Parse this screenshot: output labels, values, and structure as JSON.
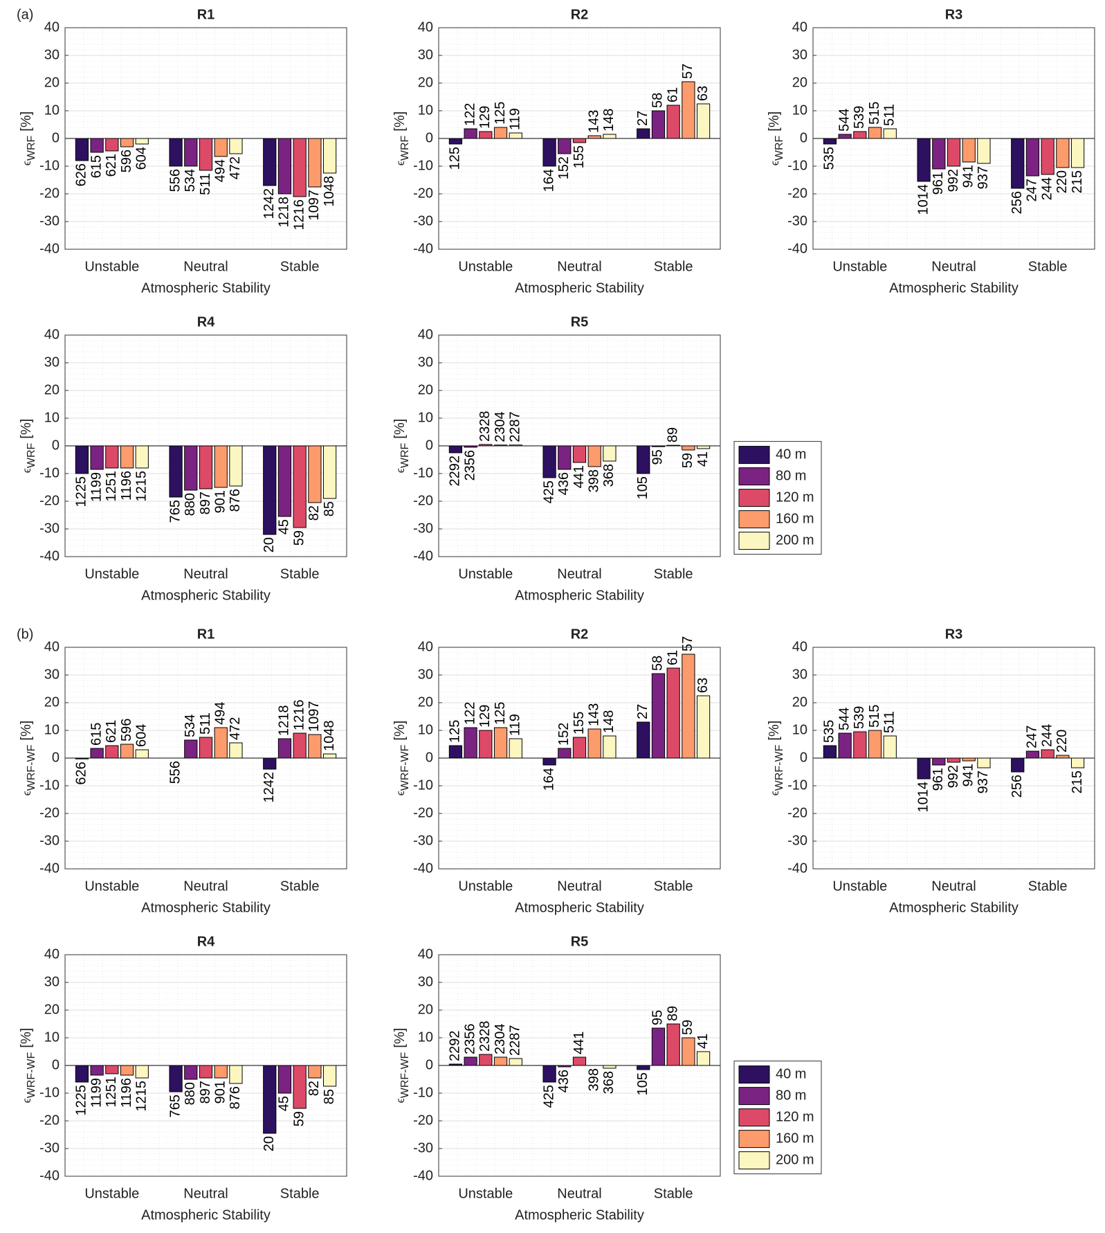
{
  "chart_data": [
    {
      "type": "bar",
      "panel_label": "(a)",
      "title": "R1",
      "categories": [
        "Unstable",
        "Neutral",
        "Stable"
      ],
      "xlabel": "Atmospheric Stability",
      "ylabel": {
        "symbol": "ϵ",
        "subscript": "WRF",
        "unit": "[%]"
      },
      "ylim": [
        -40,
        40
      ],
      "yticks": [
        -40,
        -30,
        -20,
        -10,
        0,
        10,
        20,
        30,
        40
      ],
      "grid": true,
      "minor_grid": true,
      "series": [
        {
          "name": "40 m",
          "color": "#2d1160",
          "values": [
            -8,
            -10,
            -17
          ],
          "sample_counts": [
            626,
            556,
            1242
          ]
        },
        {
          "name": "80 m",
          "color": "#7b2382",
          "values": [
            -5,
            -10,
            -20
          ],
          "sample_counts": [
            615,
            534,
            1218
          ]
        },
        {
          "name": "120 m",
          "color": "#dd4a68",
          "values": [
            -4.5,
            -11.5,
            -21
          ],
          "sample_counts": [
            621,
            511,
            1216
          ]
        },
        {
          "name": "160 m",
          "color": "#fc9b6b",
          "values": [
            -3,
            -6.5,
            -17.5
          ],
          "sample_counts": [
            596,
            494,
            1097
          ]
        },
        {
          "name": "200 m",
          "color": "#fcf6c0",
          "values": [
            -2,
            -5.5,
            -12.5
          ],
          "sample_counts": [
            604,
            472,
            1048
          ]
        }
      ]
    },
    {
      "type": "bar",
      "title": "R2",
      "categories": [
        "Unstable",
        "Neutral",
        "Stable"
      ],
      "xlabel": "Atmospheric Stability",
      "ylabel": {
        "symbol": "ϵ",
        "subscript": "WRF",
        "unit": "[%]"
      },
      "ylim": [
        -40,
        40
      ],
      "yticks": [
        -40,
        -30,
        -20,
        -10,
        0,
        10,
        20,
        30,
        40
      ],
      "grid": true,
      "minor_grid": true,
      "series": [
        {
          "name": "40 m",
          "color": "#2d1160",
          "values": [
            -2,
            -10,
            3.5
          ],
          "sample_counts": [
            125,
            164,
            27
          ]
        },
        {
          "name": "80 m",
          "color": "#7b2382",
          "values": [
            3.5,
            -5.5,
            10
          ],
          "sample_counts": [
            122,
            152,
            58
          ]
        },
        {
          "name": "120 m",
          "color": "#dd4a68",
          "values": [
            2.5,
            -1.5,
            12
          ],
          "sample_counts": [
            129,
            155,
            61
          ]
        },
        {
          "name": "160 m",
          "color": "#fc9b6b",
          "values": [
            4,
            1,
            20.5
          ],
          "sample_counts": [
            125,
            143,
            57
          ]
        },
        {
          "name": "200 m",
          "color": "#fcf6c0",
          "values": [
            2,
            1.5,
            12.5
          ],
          "sample_counts": [
            119,
            148,
            63
          ]
        }
      ]
    },
    {
      "type": "bar",
      "title": "R3",
      "categories": [
        "Unstable",
        "Neutral",
        "Stable"
      ],
      "xlabel": "Atmospheric Stability",
      "ylabel": {
        "symbol": "ϵ",
        "subscript": "WRF",
        "unit": "[%]"
      },
      "ylim": [
        -40,
        40
      ],
      "yticks": [
        -40,
        -30,
        -20,
        -10,
        0,
        10,
        20,
        30,
        40
      ],
      "grid": true,
      "minor_grid": true,
      "series": [
        {
          "name": "40 m",
          "color": "#2d1160",
          "values": [
            -2,
            -15.5,
            -18
          ],
          "sample_counts": [
            535,
            1014,
            256
          ]
        },
        {
          "name": "80 m",
          "color": "#7b2382",
          "values": [
            1.5,
            -11,
            -13.5
          ],
          "sample_counts": [
            544,
            961,
            247
          ]
        },
        {
          "name": "120 m",
          "color": "#dd4a68",
          "values": [
            2.5,
            -10,
            -13
          ],
          "sample_counts": [
            539,
            992,
            244
          ]
        },
        {
          "name": "160 m",
          "color": "#fc9b6b",
          "values": [
            4,
            -8.5,
            -10.5
          ],
          "sample_counts": [
            515,
            941,
            220
          ]
        },
        {
          "name": "200 m",
          "color": "#fcf6c0",
          "values": [
            3.5,
            -9,
            -10.5
          ],
          "sample_counts": [
            511,
            937,
            215
          ]
        }
      ]
    },
    {
      "type": "bar",
      "title": "R4",
      "categories": [
        "Unstable",
        "Neutral",
        "Stable"
      ],
      "xlabel": "Atmospheric Stability",
      "ylabel": {
        "symbol": "ϵ",
        "subscript": "WRF",
        "unit": "[%]"
      },
      "ylim": [
        -40,
        40
      ],
      "yticks": [
        -40,
        -30,
        -20,
        -10,
        0,
        10,
        20,
        30,
        40
      ],
      "grid": true,
      "minor_grid": true,
      "series": [
        {
          "name": "40 m",
          "color": "#2d1160",
          "values": [
            -10,
            -18.5,
            -32
          ],
          "sample_counts": [
            1225,
            765,
            20
          ]
        },
        {
          "name": "80 m",
          "color": "#7b2382",
          "values": [
            -8.5,
            -16,
            -25.5
          ],
          "sample_counts": [
            1199,
            880,
            45
          ]
        },
        {
          "name": "120 m",
          "color": "#dd4a68",
          "values": [
            -8,
            -15.5,
            -29.5
          ],
          "sample_counts": [
            1251,
            897,
            59
          ]
        },
        {
          "name": "160 m",
          "color": "#fc9b6b",
          "values": [
            -8,
            -15,
            -20.5
          ],
          "sample_counts": [
            1196,
            901,
            82
          ]
        },
        {
          "name": "200 m",
          "color": "#fcf6c0",
          "values": [
            -8,
            -14.5,
            -19
          ],
          "sample_counts": [
            1215,
            876,
            85
          ]
        }
      ]
    },
    {
      "type": "bar",
      "title": "R5",
      "categories": [
        "Unstable",
        "Neutral",
        "Stable"
      ],
      "xlabel": "Atmospheric Stability",
      "ylabel": {
        "symbol": "ϵ",
        "subscript": "WRF",
        "unit": "[%]"
      },
      "ylim": [
        -40,
        40
      ],
      "yticks": [
        -40,
        -30,
        -20,
        -10,
        0,
        10,
        20,
        30,
        40
      ],
      "grid": true,
      "minor_grid": true,
      "legend": "right",
      "series": [
        {
          "name": "40 m",
          "color": "#2d1160",
          "values": [
            -2.5,
            -11.5,
            -10
          ],
          "sample_counts": [
            2292,
            425,
            105
          ]
        },
        {
          "name": "80 m",
          "color": "#7b2382",
          "values": [
            -0.5,
            -8.5,
            -0.3
          ],
          "sample_counts": [
            2356,
            436,
            95
          ]
        },
        {
          "name": "120 m",
          "color": "#dd4a68",
          "values": [
            0.5,
            -6,
            0.2
          ],
          "sample_counts": [
            2328,
            441,
            89
          ]
        },
        {
          "name": "160 m",
          "color": "#fc9b6b",
          "values": [
            0.3,
            -7.5,
            -1.5
          ],
          "sample_counts": [
            2304,
            398,
            59
          ]
        },
        {
          "name": "200 m",
          "color": "#fcf6c0",
          "values": [
            0.3,
            -5.5,
            -1
          ],
          "sample_counts": [
            2287,
            368,
            41
          ]
        }
      ]
    },
    {
      "type": "bar",
      "panel_label": "(b)",
      "title": "R1",
      "categories": [
        "Unstable",
        "Neutral",
        "Stable"
      ],
      "xlabel": "Atmospheric Stability",
      "ylabel": {
        "symbol": "ϵ",
        "subscript": "WRF-WF",
        "unit": "[%]"
      },
      "ylim": [
        -40,
        40
      ],
      "yticks": [
        -40,
        -30,
        -20,
        -10,
        0,
        10,
        20,
        30,
        40
      ],
      "grid": true,
      "minor_grid": true,
      "series": [
        {
          "name": "40 m",
          "color": "#2d1160",
          "values": [
            -0.3,
            0,
            -4
          ],
          "sample_counts": [
            626,
            556,
            1242
          ]
        },
        {
          "name": "80 m",
          "color": "#7b2382",
          "values": [
            3.5,
            6.5,
            7
          ],
          "sample_counts": [
            615,
            534,
            1218
          ]
        },
        {
          "name": "120 m",
          "color": "#dd4a68",
          "values": [
            4.5,
            7.5,
            9
          ],
          "sample_counts": [
            621,
            511,
            1216
          ]
        },
        {
          "name": "160 m",
          "color": "#fc9b6b",
          "values": [
            5,
            11,
            8.5
          ],
          "sample_counts": [
            596,
            494,
            1097
          ]
        },
        {
          "name": "200 m",
          "color": "#fcf6c0",
          "values": [
            3,
            5.5,
            1.5
          ],
          "sample_counts": [
            604,
            472,
            1048
          ]
        }
      ]
    },
    {
      "type": "bar",
      "title": "R2",
      "categories": [
        "Unstable",
        "Neutral",
        "Stable"
      ],
      "xlabel": "Atmospheric Stability",
      "ylabel": {
        "symbol": "ϵ",
        "subscript": "WRF-WF",
        "unit": "[%]"
      },
      "ylim": [
        -40,
        40
      ],
      "yticks": [
        -40,
        -30,
        -20,
        -10,
        0,
        10,
        20,
        30,
        40
      ],
      "grid": true,
      "minor_grid": true,
      "series": [
        {
          "name": "40 m",
          "color": "#2d1160",
          "values": [
            4.5,
            -2.5,
            13
          ],
          "sample_counts": [
            125,
            164,
            27
          ]
        },
        {
          "name": "80 m",
          "color": "#7b2382",
          "values": [
            11,
            3.5,
            30.5
          ],
          "sample_counts": [
            122,
            152,
            58
          ]
        },
        {
          "name": "120 m",
          "color": "#dd4a68",
          "values": [
            10,
            7.5,
            32.5
          ],
          "sample_counts": [
            129,
            155,
            61
          ]
        },
        {
          "name": "160 m",
          "color": "#fc9b6b",
          "values": [
            11,
            10.5,
            37.5
          ],
          "sample_counts": [
            125,
            143,
            57
          ]
        },
        {
          "name": "200 m",
          "color": "#fcf6c0",
          "values": [
            7,
            8,
            22.5
          ],
          "sample_counts": [
            119,
            148,
            63
          ]
        }
      ]
    },
    {
      "type": "bar",
      "title": "R3",
      "categories": [
        "Unstable",
        "Neutral",
        "Stable"
      ],
      "xlabel": "Atmospheric Stability",
      "ylabel": {
        "symbol": "ϵ",
        "subscript": "WRF-WF",
        "unit": "[%]"
      },
      "ylim": [
        -40,
        40
      ],
      "yticks": [
        -40,
        -30,
        -20,
        -10,
        0,
        10,
        20,
        30,
        40
      ],
      "grid": true,
      "minor_grid": true,
      "series": [
        {
          "name": "40 m",
          "color": "#2d1160",
          "values": [
            4.5,
            -7.5,
            -5
          ],
          "sample_counts": [
            535,
            1014,
            256
          ]
        },
        {
          "name": "80 m",
          "color": "#7b2382",
          "values": [
            9,
            -2.5,
            2.5
          ],
          "sample_counts": [
            544,
            961,
            247
          ]
        },
        {
          "name": "120 m",
          "color": "#dd4a68",
          "values": [
            9.5,
            -1.5,
            3
          ],
          "sample_counts": [
            539,
            992,
            244
          ]
        },
        {
          "name": "160 m",
          "color": "#fc9b6b",
          "values": [
            10,
            -1,
            1
          ],
          "sample_counts": [
            515,
            941,
            220
          ]
        },
        {
          "name": "200 m",
          "color": "#fcf6c0",
          "values": [
            8,
            -3.5,
            -3.5
          ],
          "sample_counts": [
            511,
            937,
            215
          ]
        }
      ]
    },
    {
      "type": "bar",
      "title": "R4",
      "categories": [
        "Unstable",
        "Neutral",
        "Stable"
      ],
      "xlabel": "Atmospheric Stability",
      "ylabel": {
        "symbol": "ϵ",
        "subscript": "WRF-WF",
        "unit": "[%]"
      },
      "ylim": [
        -40,
        40
      ],
      "yticks": [
        -40,
        -30,
        -20,
        -10,
        0,
        10,
        20,
        30,
        40
      ],
      "grid": true,
      "minor_grid": true,
      "series": [
        {
          "name": "40 m",
          "color": "#2d1160",
          "values": [
            -6,
            -9.5,
            -24.5
          ],
          "sample_counts": [
            1225,
            765,
            20
          ]
        },
        {
          "name": "80 m",
          "color": "#7b2382",
          "values": [
            -3.5,
            -5,
            -10
          ],
          "sample_counts": [
            1199,
            880,
            45
          ]
        },
        {
          "name": "120 m",
          "color": "#dd4a68",
          "values": [
            -3,
            -4.5,
            -15.5
          ],
          "sample_counts": [
            1251,
            897,
            59
          ]
        },
        {
          "name": "160 m",
          "color": "#fc9b6b",
          "values": [
            -3.5,
            -4.5,
            -4.5
          ],
          "sample_counts": [
            1196,
            901,
            82
          ]
        },
        {
          "name": "200 m",
          "color": "#fcf6c0",
          "values": [
            -4.5,
            -6.5,
            -7.5
          ],
          "sample_counts": [
            1215,
            876,
            85
          ]
        }
      ]
    },
    {
      "type": "bar",
      "title": "R5",
      "categories": [
        "Unstable",
        "Neutral",
        "Stable"
      ],
      "xlabel": "Atmospheric Stability",
      "ylabel": {
        "symbol": "ϵ",
        "subscript": "WRF-WF",
        "unit": "[%]"
      },
      "ylim": [
        -40,
        40
      ],
      "yticks": [
        -40,
        -30,
        -20,
        -10,
        0,
        10,
        20,
        30,
        40
      ],
      "grid": true,
      "minor_grid": true,
      "legend": "right",
      "series": [
        {
          "name": "40 m",
          "color": "#2d1160",
          "values": [
            0.5,
            -6,
            -1.5
          ],
          "sample_counts": [
            2292,
            425,
            105
          ]
        },
        {
          "name": "80 m",
          "color": "#7b2382",
          "values": [
            3,
            -0.5,
            13.5
          ],
          "sample_counts": [
            2356,
            436,
            95
          ]
        },
        {
          "name": "120 m",
          "color": "#dd4a68",
          "values": [
            4,
            3,
            15
          ],
          "sample_counts": [
            2328,
            441,
            89
          ]
        },
        {
          "name": "160 m",
          "color": "#fc9b6b",
          "values": [
            3,
            0,
            10
          ],
          "sample_counts": [
            2304,
            398,
            59
          ]
        },
        {
          "name": "200 m",
          "color": "#fcf6c0",
          "values": [
            2.5,
            -1,
            5
          ],
          "sample_counts": [
            2287,
            368,
            41
          ]
        }
      ]
    }
  ]
}
